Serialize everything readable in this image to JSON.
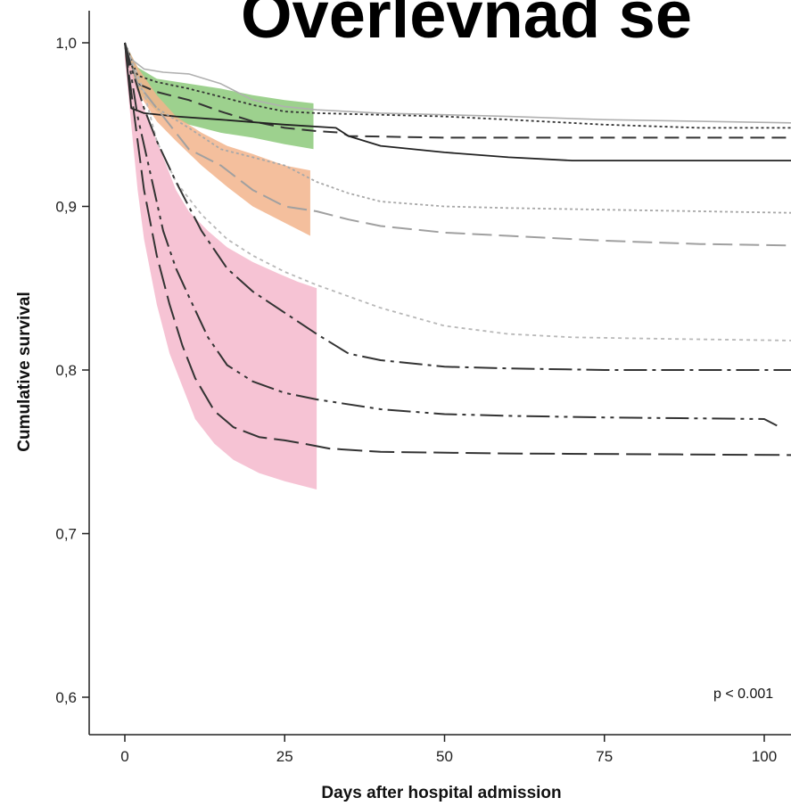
{
  "chart_data": {
    "type": "line",
    "title": "Överlevnad se",
    "xlabel": "Days after hospital admission",
    "ylabel": "Cumulative survival",
    "annotation": "p < 0.001",
    "xlim": [
      -10,
      105
    ],
    "ylim": [
      0.58,
      1.02
    ],
    "x_ticks": [
      0,
      25,
      50,
      75,
      100
    ],
    "x_tick_labels": [
      "0",
      "25",
      "50",
      "75",
      "100"
    ],
    "y_ticks": [
      0.6,
      0.7,
      0.8,
      0.9,
      1.0
    ],
    "y_tick_labels": [
      "0,6",
      "0,7",
      "0,8",
      "0,9",
      "1,0"
    ],
    "grid": false,
    "bands": [
      {
        "color": "#8cc97a",
        "upper": [
          [
            0,
            1.0
          ],
          [
            2,
            0.985
          ],
          [
            5,
            0.978
          ],
          [
            10,
            0.975
          ],
          [
            15,
            0.972
          ],
          [
            20,
            0.968
          ],
          [
            25,
            0.965
          ],
          [
            29.5,
            0.963
          ]
        ],
        "lower": [
          [
            0,
            0.99
          ],
          [
            2,
            0.97
          ],
          [
            5,
            0.958
          ],
          [
            10,
            0.95
          ],
          [
            15,
            0.945
          ],
          [
            20,
            0.942
          ],
          [
            25,
            0.938
          ],
          [
            29.5,
            0.935
          ]
        ]
      },
      {
        "color": "#f2b48c",
        "upper": [
          [
            0,
            1.0
          ],
          [
            2,
            0.985
          ],
          [
            5,
            0.968
          ],
          [
            8,
            0.955
          ],
          [
            12,
            0.945
          ],
          [
            16,
            0.937
          ],
          [
            20,
            0.932
          ],
          [
            25,
            0.925
          ],
          [
            29,
            0.922
          ]
        ],
        "lower": [
          [
            0,
            0.99
          ],
          [
            2,
            0.97
          ],
          [
            5,
            0.952
          ],
          [
            8,
            0.94
          ],
          [
            12,
            0.925
          ],
          [
            16,
            0.912
          ],
          [
            20,
            0.9
          ],
          [
            25,
            0.89
          ],
          [
            29,
            0.882
          ]
        ]
      },
      {
        "color": "#f4b8cc",
        "upper": [
          [
            0,
            1.0
          ],
          [
            2,
            0.97
          ],
          [
            4,
            0.95
          ],
          [
            6,
            0.93
          ],
          [
            8,
            0.91
          ],
          [
            10,
            0.897
          ],
          [
            13,
            0.885
          ],
          [
            16,
            0.875
          ],
          [
            20,
            0.866
          ],
          [
            24,
            0.859
          ],
          [
            27,
            0.854
          ],
          [
            30,
            0.85
          ]
        ],
        "lower": [
          [
            0,
            0.99
          ],
          [
            1,
            0.95
          ],
          [
            2,
            0.91
          ],
          [
            3,
            0.88
          ],
          [
            5,
            0.84
          ],
          [
            7,
            0.81
          ],
          [
            9,
            0.79
          ],
          [
            11,
            0.77
          ],
          [
            14,
            0.755
          ],
          [
            17,
            0.745
          ],
          [
            21,
            0.737
          ],
          [
            25,
            0.732
          ],
          [
            30,
            0.727
          ]
        ]
      }
    ],
    "series": [
      {
        "color": "#b0b0b0",
        "dash": "",
        "width": 1.6,
        "points": [
          [
            0,
            1.0
          ],
          [
            1,
            0.99
          ],
          [
            3,
            0.984
          ],
          [
            6,
            0.982
          ],
          [
            10,
            0.981
          ],
          [
            15,
            0.975
          ],
          [
            20,
            0.965
          ],
          [
            25,
            0.961
          ],
          [
            30,
            0.959
          ],
          [
            40,
            0.957
          ],
          [
            50,
            0.956
          ],
          [
            60,
            0.955
          ],
          [
            75,
            0.953
          ],
          [
            90,
            0.952
          ],
          [
            105,
            0.951
          ]
        ]
      },
      {
        "color": "#333333",
        "dash": "3,3",
        "width": 1.8,
        "points": [
          [
            0,
            1.0
          ],
          [
            2,
            0.98
          ],
          [
            5,
            0.976
          ],
          [
            10,
            0.972
          ],
          [
            15,
            0.967
          ],
          [
            20,
            0.962
          ],
          [
            25,
            0.958
          ],
          [
            30,
            0.957
          ],
          [
            50,
            0.955
          ],
          [
            60,
            0.953
          ],
          [
            75,
            0.95
          ],
          [
            90,
            0.948
          ],
          [
            105,
            0.948
          ]
        ]
      },
      {
        "color": "#333333",
        "dash": "16,8",
        "width": 2,
        "points": [
          [
            0,
            1.0
          ],
          [
            2,
            0.975
          ],
          [
            5,
            0.97
          ],
          [
            10,
            0.965
          ],
          [
            15,
            0.958
          ],
          [
            20,
            0.952
          ],
          [
            25,
            0.948
          ],
          [
            30,
            0.946
          ],
          [
            34,
            0.945
          ],
          [
            35,
            0.943
          ],
          [
            50,
            0.942
          ],
          [
            75,
            0.942
          ],
          [
            105,
            0.942
          ]
        ]
      },
      {
        "color": "#222222",
        "dash": "",
        "width": 1.8,
        "points": [
          [
            0,
            1.0
          ],
          [
            1,
            0.96
          ],
          [
            3,
            0.957
          ],
          [
            8,
            0.955
          ],
          [
            15,
            0.953
          ],
          [
            25,
            0.95
          ],
          [
            33,
            0.948
          ],
          [
            35,
            0.943
          ],
          [
            40,
            0.937
          ],
          [
            50,
            0.933
          ],
          [
            60,
            0.93
          ],
          [
            70,
            0.928
          ],
          [
            105,
            0.928
          ]
        ]
      },
      {
        "color": "#a8a8a8",
        "dash": "3,3",
        "width": 1.8,
        "points": [
          [
            0,
            1.0
          ],
          [
            2,
            0.975
          ],
          [
            5,
            0.96
          ],
          [
            10,
            0.948
          ],
          [
            15,
            0.935
          ],
          [
            20,
            0.93
          ],
          [
            25,
            0.925
          ],
          [
            30,
            0.915
          ],
          [
            35,
            0.908
          ],
          [
            40,
            0.903
          ],
          [
            50,
            0.9
          ],
          [
            60,
            0.899
          ],
          [
            75,
            0.898
          ],
          [
            90,
            0.897
          ],
          [
            105,
            0.896
          ]
        ]
      },
      {
        "color": "#a0a0a0",
        "dash": "22,8",
        "width": 2,
        "points": [
          [
            0,
            1.0
          ],
          [
            2,
            0.975
          ],
          [
            5,
            0.96
          ],
          [
            10,
            0.935
          ],
          [
            15,
            0.925
          ],
          [
            20,
            0.91
          ],
          [
            25,
            0.9
          ],
          [
            30,
            0.897
          ],
          [
            35,
            0.892
          ],
          [
            40,
            0.888
          ],
          [
            50,
            0.884
          ],
          [
            60,
            0.882
          ],
          [
            75,
            0.879
          ],
          [
            90,
            0.877
          ],
          [
            105,
            0.876
          ]
        ]
      },
      {
        "color": "#b8b8b8",
        "dash": "4,4",
        "width": 1.8,
        "points": [
          [
            0,
            1.0
          ],
          [
            1,
            0.99
          ],
          [
            3,
            0.97
          ],
          [
            5,
            0.94
          ],
          [
            8,
            0.915
          ],
          [
            12,
            0.895
          ],
          [
            16,
            0.88
          ],
          [
            20,
            0.87
          ],
          [
            25,
            0.86
          ],
          [
            30,
            0.852
          ],
          [
            40,
            0.838
          ],
          [
            50,
            0.827
          ],
          [
            60,
            0.822
          ],
          [
            70,
            0.82
          ],
          [
            85,
            0.819
          ],
          [
            105,
            0.818
          ]
        ]
      },
      {
        "color": "#333333",
        "dash": "26,6,4,6",
        "width": 2,
        "points": [
          [
            0,
            1.0
          ],
          [
            1,
            0.985
          ],
          [
            3,
            0.96
          ],
          [
            5,
            0.94
          ],
          [
            8,
            0.915
          ],
          [
            12,
            0.885
          ],
          [
            16,
            0.862
          ],
          [
            20,
            0.848
          ],
          [
            25,
            0.835
          ],
          [
            30,
            0.822
          ],
          [
            35,
            0.81
          ],
          [
            40,
            0.806
          ],
          [
            50,
            0.802
          ],
          [
            60,
            0.801
          ],
          [
            75,
            0.8
          ],
          [
            105,
            0.8
          ]
        ]
      },
      {
        "color": "#333333",
        "dash": "26,6,4,6,4,6",
        "width": 2,
        "points": [
          [
            0,
            1.0
          ],
          [
            1,
            0.98
          ],
          [
            2,
            0.955
          ],
          [
            4,
            0.92
          ],
          [
            6,
            0.885
          ],
          [
            8,
            0.862
          ],
          [
            10,
            0.845
          ],
          [
            13,
            0.82
          ],
          [
            16,
            0.803
          ],
          [
            20,
            0.793
          ],
          [
            25,
            0.786
          ],
          [
            30,
            0.782
          ],
          [
            40,
            0.776
          ],
          [
            50,
            0.773
          ],
          [
            60,
            0.772
          ],
          [
            75,
            0.771
          ],
          [
            100,
            0.77
          ],
          [
            102,
            0.766
          ]
        ]
      },
      {
        "color": "#333333",
        "dash": "28,8",
        "width": 2,
        "points": [
          [
            0,
            1.0
          ],
          [
            1,
            0.97
          ],
          [
            2,
            0.94
          ],
          [
            3,
            0.91
          ],
          [
            5,
            0.87
          ],
          [
            7,
            0.84
          ],
          [
            9,
            0.815
          ],
          [
            11,
            0.795
          ],
          [
            14,
            0.775
          ],
          [
            17,
            0.765
          ],
          [
            21,
            0.759
          ],
          [
            25,
            0.757
          ],
          [
            28,
            0.755
          ],
          [
            32,
            0.752
          ],
          [
            40,
            0.75
          ],
          [
            60,
            0.749
          ],
          [
            105,
            0.748
          ]
        ]
      }
    ]
  }
}
